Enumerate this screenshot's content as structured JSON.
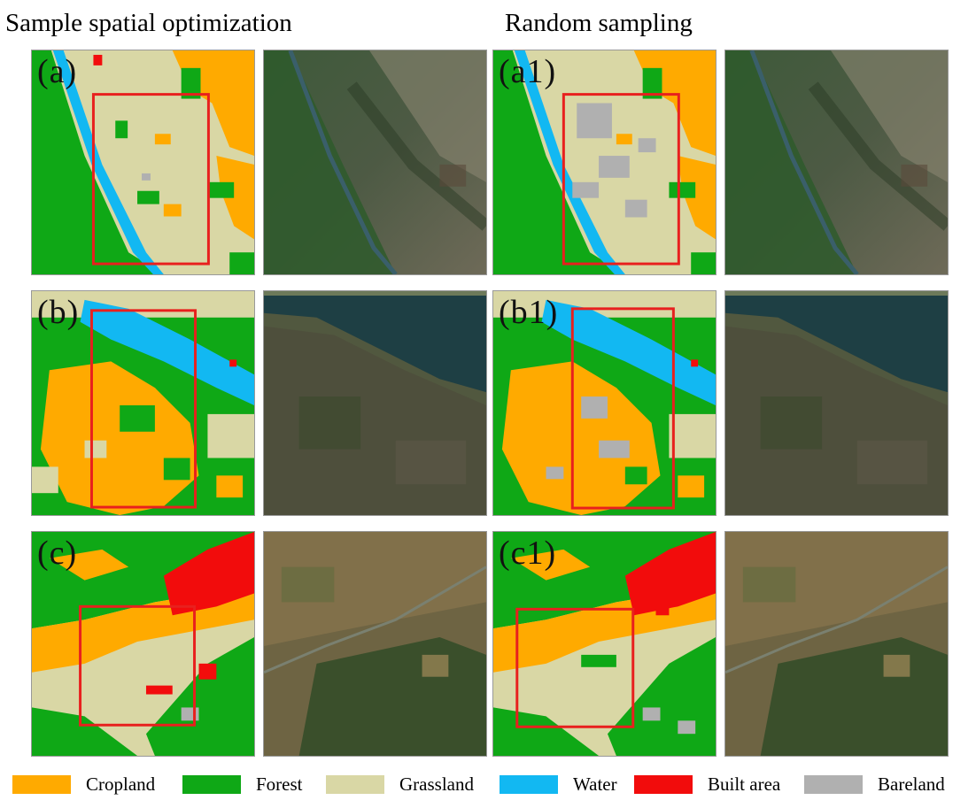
{
  "headings": {
    "left": "Sample spatial optimization",
    "right": "Random sampling"
  },
  "panels": {
    "a": "(a)",
    "a1": "(a1)",
    "b": "(b)",
    "b1": "(b1)",
    "c": "(c)",
    "c1": "(c1)"
  },
  "legend": [
    {
      "label": "Cropland",
      "color": "#FFAA00"
    },
    {
      "label": "Forest",
      "color": "#0FA816"
    },
    {
      "label": "Grassland",
      "color": "#D9D7A5"
    },
    {
      "label": "Water",
      "color": "#12B8F2"
    },
    {
      "label": "Built area",
      "color": "#F20C0C"
    },
    {
      "label": "Bareland",
      "color": "#B0B0B0"
    }
  ],
  "colors": {
    "highlight_box": "#E8201E",
    "satellite_dark": "#3D4A35"
  }
}
